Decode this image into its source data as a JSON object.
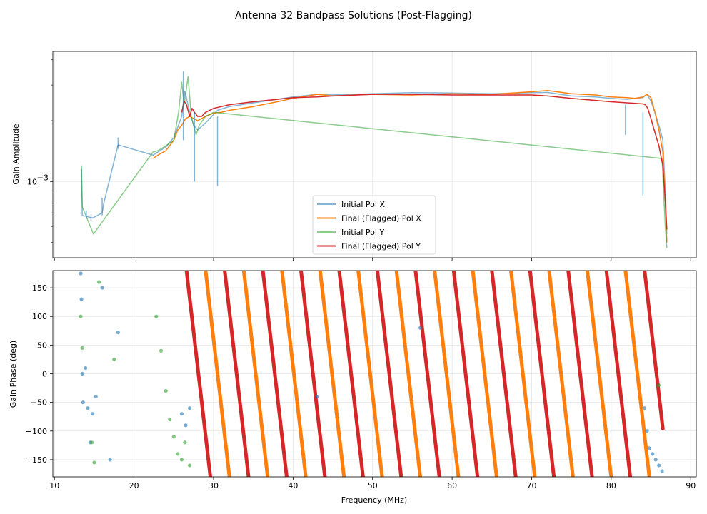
{
  "chart_data": {
    "title": "Antenna 32 Bandpass Solutions (Post-Flagging)",
    "xlabel": "Frequency (MHz)",
    "xlim": [
      9.8,
      90.7
    ],
    "xticks": [
      10,
      20,
      30,
      40,
      50,
      60,
      70,
      80,
      90
    ],
    "xtick_labels": [
      "10",
      "20",
      "30",
      "40",
      "50",
      "60",
      "70",
      "80",
      "90"
    ],
    "colors": {
      "initial_x": "#1f77b4",
      "final_x": "#ff7f0e",
      "initial_y": "#2ca02c",
      "final_y": "#d62728"
    },
    "panels": [
      {
        "type": "line",
        "ylabel": "Gain Amplitude",
        "yscale": "log",
        "ylim": [
          0.00042,
          0.0044
        ],
        "yticks": [
          0.001
        ],
        "ytick_base": "10",
        "ytick_exp": "−3",
        "legend_location": "lower-center",
        "series": [
          {
            "key": "initial_x",
            "name": "Initial Pol X",
            "alpha": 0.55,
            "x": [
              13.4,
              13.5,
              14.8,
              16.0,
              16.2,
              18.0,
              22.4,
              24.0,
              25.0,
              26.0,
              26.4,
              27.0,
              27.5,
              28.0,
              29.0,
              30.5,
              32.0,
              35.0,
              40.0,
              43.0,
              45.0,
              50.0,
              55.0,
              60.0,
              65.0,
              70.0,
              72.0,
              75.0,
              78.0,
              80.0,
              82.0,
              83.0,
              84.0,
              84.5,
              85.0,
              85.5,
              86.0,
              86.5,
              86.8,
              87.0
            ],
            "y": [
              0.00115,
              0.00068,
              0.00066,
              0.0007,
              0.00078,
              0.00152,
              0.00135,
              0.00148,
              0.00165,
              0.0021,
              0.0028,
              0.0022,
              0.0019,
              0.0018,
              0.00195,
              0.00225,
              0.00235,
              0.00245,
              0.00262,
              0.0027,
              0.00268,
              0.00272,
              0.00275,
              0.00274,
              0.00272,
              0.00275,
              0.00276,
              0.00265,
              0.00262,
              0.00258,
              0.00255,
              0.00258,
              0.0026,
              0.0027,
              0.0025,
              0.0022,
              0.0019,
              0.0016,
              0.0009,
              0.00055
            ]
          },
          {
            "key": "final_x",
            "name": "Final (Flagged) Pol X",
            "alpha": 1.0,
            "x": [
              22.4,
              23.0,
              24.0,
              25.0,
              25.5,
              26.0,
              26.5,
              27.0,
              27.5,
              28.0,
              29.0,
              30.0,
              31.0,
              32.0,
              35.0,
              38.0,
              40.0,
              43.0,
              45.0,
              50.0,
              55.0,
              60.0,
              65.0,
              70.0,
              72.0,
              75.0,
              78.0,
              80.0,
              82.0,
              83.0,
              84.0,
              84.5,
              85.0,
              85.5,
              86.0,
              86.5,
              86.8,
              87.0
            ],
            "y": [
              0.0013,
              0.00135,
              0.00142,
              0.0016,
              0.0018,
              0.0019,
              0.00205,
              0.0021,
              0.00205,
              0.002,
              0.0021,
              0.00218,
              0.0022,
              0.00225,
              0.00235,
              0.00248,
              0.00258,
              0.0027,
              0.00265,
              0.0027,
              0.00268,
              0.00272,
              0.0027,
              0.00278,
              0.00282,
              0.00272,
              0.00268,
              0.00262,
              0.0026,
              0.00258,
              0.00262,
              0.0027,
              0.0026,
              0.0022,
              0.0018,
              0.0014,
              0.00082,
              0.0005
            ]
          },
          {
            "key": "initial_y",
            "name": "Initial Pol Y",
            "alpha": 0.55,
            "x": [
              13.4,
              13.5,
              14.9,
              22.4,
              23.0,
              24.0,
              25.0,
              25.6,
              26.0,
              26.3,
              26.8,
              27.2,
              27.8,
              28.2,
              29.0,
              30.0,
              86.4,
              86.8,
              87.0
            ],
            "y": [
              0.0012,
              0.00075,
              0.00055,
              0.0014,
              0.00142,
              0.0015,
              0.0016,
              0.0022,
              0.0031,
              0.0024,
              0.0033,
              0.0021,
              0.0017,
              0.0019,
              0.0021,
              0.0022,
              0.0013,
              0.0006,
              0.00047
            ]
          },
          {
            "key": "final_y",
            "name": "Final (Flagged) Pol Y",
            "alpha": 1.0,
            "x": [
              26.0,
              26.3,
              26.6,
              27.0,
              27.3,
              27.6,
              28.0,
              28.5,
              29.0,
              30.0,
              31.0,
              32.0,
              35.0,
              38.0,
              40.0,
              43.0,
              45.0,
              50.0,
              55.0,
              60.0,
              65.0,
              70.0,
              72.0,
              75.0,
              78.0,
              80.0,
              82.0,
              84.0,
              84.3,
              84.6,
              85.0,
              85.5,
              86.0,
              86.5,
              86.8,
              87.0
            ],
            "y": [
              0.0022,
              0.0025,
              0.0024,
              0.0021,
              0.0023,
              0.0022,
              0.0021,
              0.0021,
              0.0022,
              0.0023,
              0.00235,
              0.0024,
              0.00248,
              0.00255,
              0.0026,
              0.00262,
              0.00265,
              0.0027,
              0.0027,
              0.00268,
              0.00268,
              0.00268,
              0.00265,
              0.00258,
              0.00252,
              0.00248,
              0.00245,
              0.00242,
              0.0024,
              0.0023,
              0.00205,
              0.00175,
              0.0015,
              0.0012,
              0.0008,
              0.00058
            ]
          }
        ],
        "sparse_segments": [
          {
            "key": "initial_x",
            "x": [
              14.0,
              14.6,
              16.0,
              18.0
            ],
            "y_low": [
              0.00066,
              0.00064,
              0.00068,
              0.00145
            ],
            "y_high": [
              0.00072,
              0.00069,
              0.00083,
              0.00165
            ]
          },
          {
            "key": "initial_x",
            "x": [
              26.2,
              27.6,
              30.5
            ],
            "y_low": [
              0.0016,
              0.001,
              0.00095
            ],
            "y_high": [
              0.0035,
              0.0022,
              0.0021
            ]
          },
          {
            "key": "initial_x",
            "x": [
              81.8,
              84.0
            ],
            "y_low": [
              0.0017,
              0.00085
            ],
            "y_high": [
              0.0024,
              0.0022
            ]
          }
        ]
      },
      {
        "type": "scatter",
        "ylabel": "Gain Phase (deg)",
        "ylim": [
          -180,
          180
        ],
        "yticks": [
          -150,
          -100,
          -50,
          0,
          50,
          100,
          150
        ],
        "ytick_labels": [
          "−150",
          "−100",
          "−50",
          "0",
          "50",
          "100",
          "150"
        ],
        "phase_ramps": [
          {
            "key": "final_y",
            "start": 26.6,
            "slope_deg_per_mhz": -120,
            "spacing": 4.8,
            "end": 86.5
          },
          {
            "key": "final_x",
            "start": 29.0,
            "slope_deg_per_mhz": -120,
            "spacing": 4.8,
            "end": 86.5
          }
        ],
        "scatter_points": [
          {
            "key": "initial_x",
            "x": [
              13.3,
              13.4,
              13.5,
              13.6,
              13.9,
              14.2,
              14.5,
              14.8,
              15.2,
              16.0,
              17.0,
              18.0,
              26.0,
              26.5,
              27.0,
              43.0,
              56.0,
              84.2,
              84.5,
              84.8,
              85.2,
              85.6,
              86.0,
              86.4
            ],
            "y": [
              175,
              130,
              0,
              -50,
              10,
              -60,
              -120,
              -70,
              -40,
              150,
              -150,
              72,
              -70,
              -90,
              -60,
              -40,
              80,
              -60,
              -100,
              -130,
              -140,
              -150,
              -160,
              -170
            ]
          },
          {
            "key": "initial_y",
            "x": [
              13.3,
              13.5,
              14.7,
              15.0,
              15.6,
              17.5,
              22.8,
              23.4,
              24.0,
              24.5,
              25.0,
              25.5,
              26.0,
              26.4,
              27.0,
              86.0
            ],
            "y": [
              100,
              45,
              -120,
              -155,
              160,
              25,
              100,
              40,
              -30,
              -80,
              -110,
              -140,
              -150,
              -120,
              -160,
              -20
            ]
          }
        ]
      }
    ],
    "legend": [
      {
        "key": "initial_x",
        "label": "Initial Pol X"
      },
      {
        "key": "final_x",
        "label": "Final (Flagged) Pol X"
      },
      {
        "key": "initial_y",
        "label": "Initial Pol Y"
      },
      {
        "key": "final_y",
        "label": "Final (Flagged) Pol Y"
      }
    ]
  }
}
